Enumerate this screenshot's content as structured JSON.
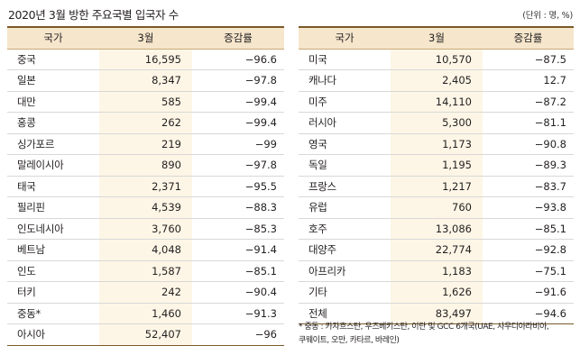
{
  "title": "2020년 3월 방한 주요국별 입국자 수",
  "unit": "(단위 : 명, %)",
  "headers": {
    "country": "국가",
    "month": "3월",
    "change": "증감률"
  },
  "left_rows": [
    {
      "country": "중국",
      "value": "16,595",
      "change": "−96.6"
    },
    {
      "country": "일본",
      "value": "8,347",
      "change": "−97.8"
    },
    {
      "country": "대만",
      "value": "585",
      "change": "−99.4"
    },
    {
      "country": "홍콩",
      "value": "262",
      "change": "−99.4"
    },
    {
      "country": "싱가포르",
      "value": "219",
      "change": "−99"
    },
    {
      "country": "말레이시아",
      "value": "890",
      "change": "−97.8"
    },
    {
      "country": "태국",
      "value": "2,371",
      "change": "−95.5"
    },
    {
      "country": "필리핀",
      "value": "4,539",
      "change": "−88.3"
    },
    {
      "country": "인도네시아",
      "value": "3,760",
      "change": "−85.3"
    },
    {
      "country": "베트남",
      "value": "4,048",
      "change": "−91.4"
    },
    {
      "country": "인도",
      "value": "1,587",
      "change": "−85.1"
    },
    {
      "country": "터키",
      "value": "242",
      "change": "−90.4"
    },
    {
      "country": "중동*",
      "value": "1,460",
      "change": "−91.3"
    },
    {
      "country": "아시아",
      "value": "52,407",
      "change": "−96"
    }
  ],
  "right_rows": [
    {
      "country": "미국",
      "value": "10,570",
      "change": "−87.5"
    },
    {
      "country": "캐나다",
      "value": "2,405",
      "change": "12.7"
    },
    {
      "country": "미주",
      "value": "14,110",
      "change": "−87.2"
    },
    {
      "country": "러시아",
      "value": "5,300",
      "change": "−81.1"
    },
    {
      "country": "영국",
      "value": "1,173",
      "change": "−90.8"
    },
    {
      "country": "독일",
      "value": "1,195",
      "change": "−89.3"
    },
    {
      "country": "프랑스",
      "value": "1,217",
      "change": "−83.7"
    },
    {
      "country": "유럽",
      "value": "760",
      "change": "−93.8"
    },
    {
      "country": "호주",
      "value": "13,086",
      "change": "−85.1"
    },
    {
      "country": "대양주",
      "value": "22,774",
      "change": "−92.8"
    },
    {
      "country": "아프리카",
      "value": "1,183",
      "change": "−75.1"
    },
    {
      "country": "기타",
      "value": "1,626",
      "change": "−91.6"
    },
    {
      "country": "전체",
      "value": "83,497",
      "change": "−94.6"
    }
  ],
  "note_line1": "* 중동 : 카자흐스탄, 우즈베키스탄, 이란 및 GCC 6개국(UAE, 사우디아라비아,",
  "note_line2": "쿠웨이트, 오만, 카타르, 바레인)"
}
